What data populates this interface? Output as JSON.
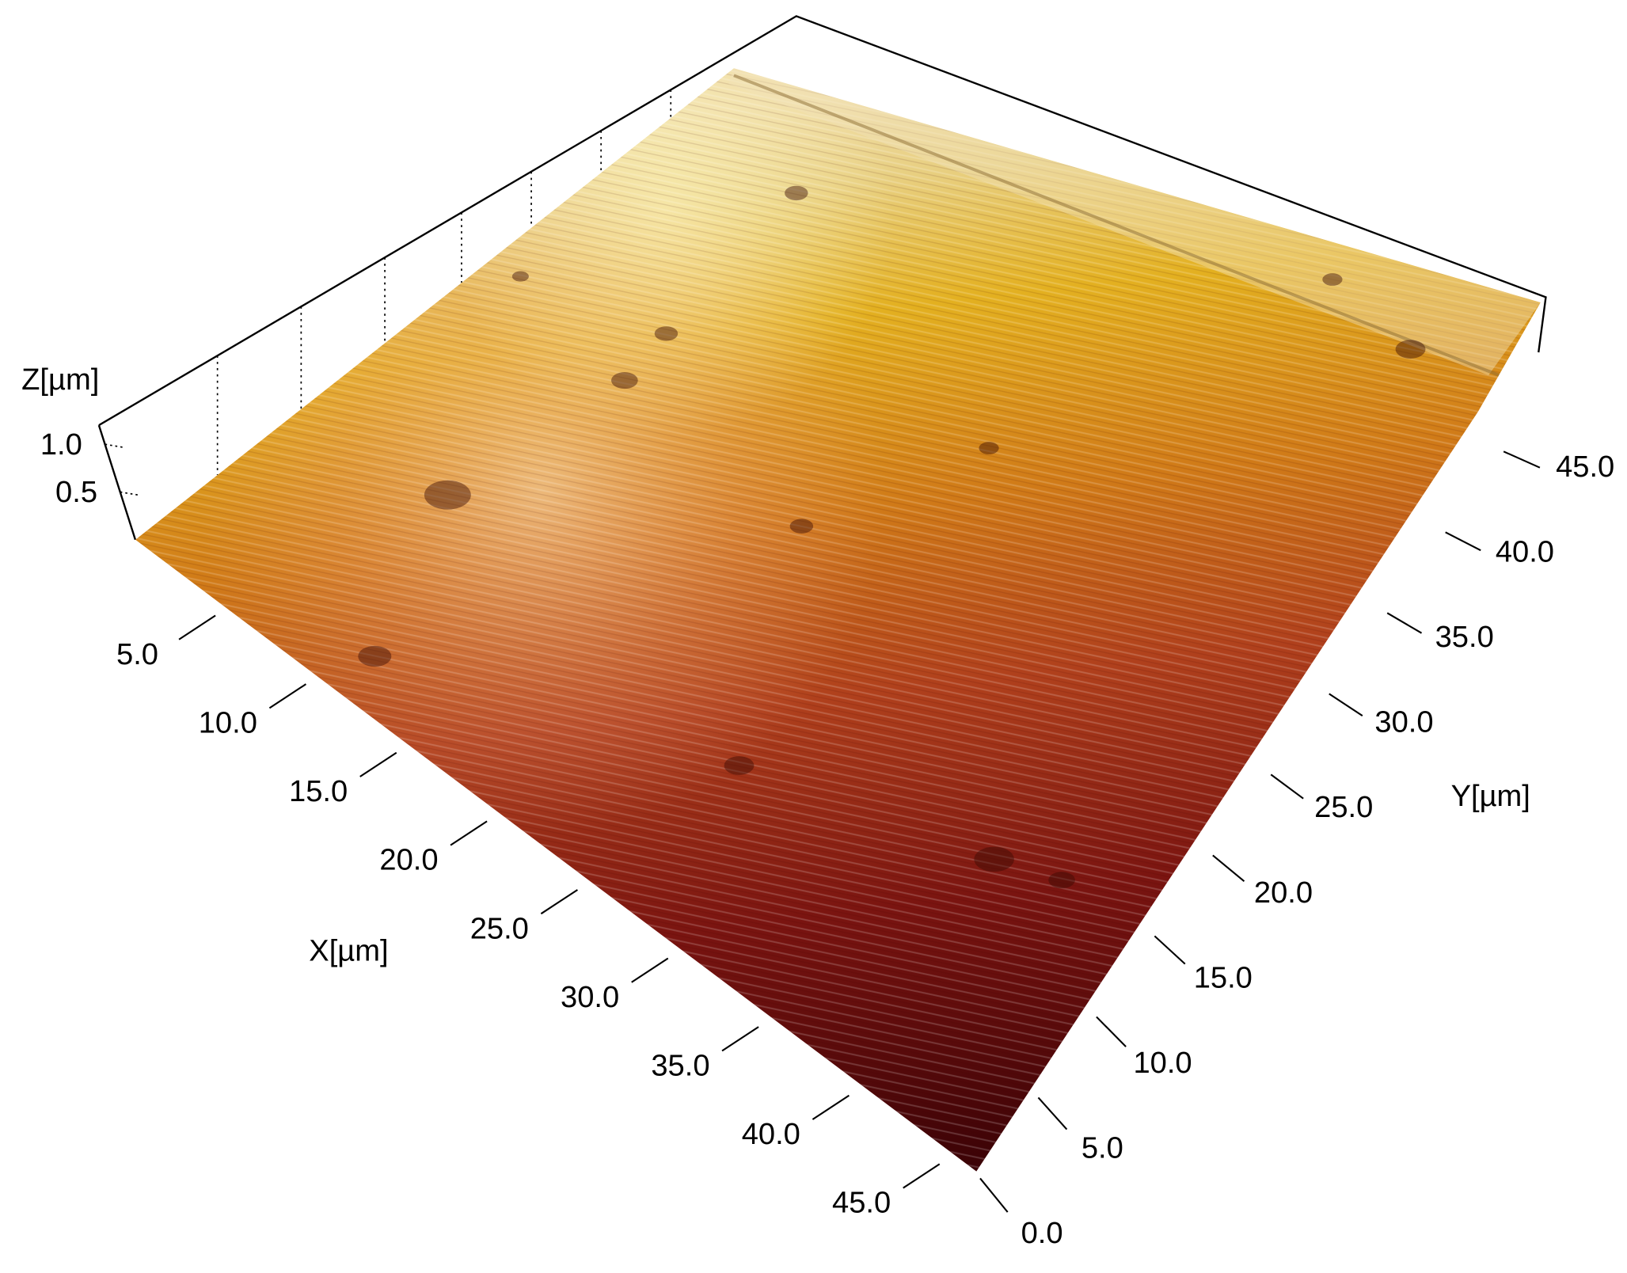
{
  "chart_data": {
    "type": "surface",
    "xlabel": "X[µm]",
    "ylabel": "Y[µm]",
    "zlabel": "Z[µm]",
    "xlim": [
      0,
      46
    ],
    "ylim": [
      0,
      47
    ],
    "zlim": [
      0,
      1.2
    ],
    "xticks": [
      {
        "value": 5,
        "label": "5.0"
      },
      {
        "value": 10,
        "label": "10.0"
      },
      {
        "value": 15,
        "label": "15.0"
      },
      {
        "value": 20,
        "label": "20.0"
      },
      {
        "value": 25,
        "label": "25.0"
      },
      {
        "value": 30,
        "label": "30.0"
      },
      {
        "value": 35,
        "label": "35.0"
      },
      {
        "value": 40,
        "label": "40.0"
      },
      {
        "value": 45,
        "label": "45.0"
      }
    ],
    "yticks": [
      {
        "value": 0,
        "label": "0.0"
      },
      {
        "value": 5,
        "label": "5.0"
      },
      {
        "value": 10,
        "label": "10.0"
      },
      {
        "value": 15,
        "label": "15.0"
      },
      {
        "value": 20,
        "label": "20.0"
      },
      {
        "value": 25,
        "label": "25.0"
      },
      {
        "value": 30,
        "label": "30.0"
      },
      {
        "value": 35,
        "label": "35.0"
      },
      {
        "value": 40,
        "label": "40.0"
      },
      {
        "value": 45,
        "label": "45.0"
      }
    ],
    "zticks": [
      0.5,
      {
        "value": 1,
        "label": "1.0"
      }
    ]
  }
}
